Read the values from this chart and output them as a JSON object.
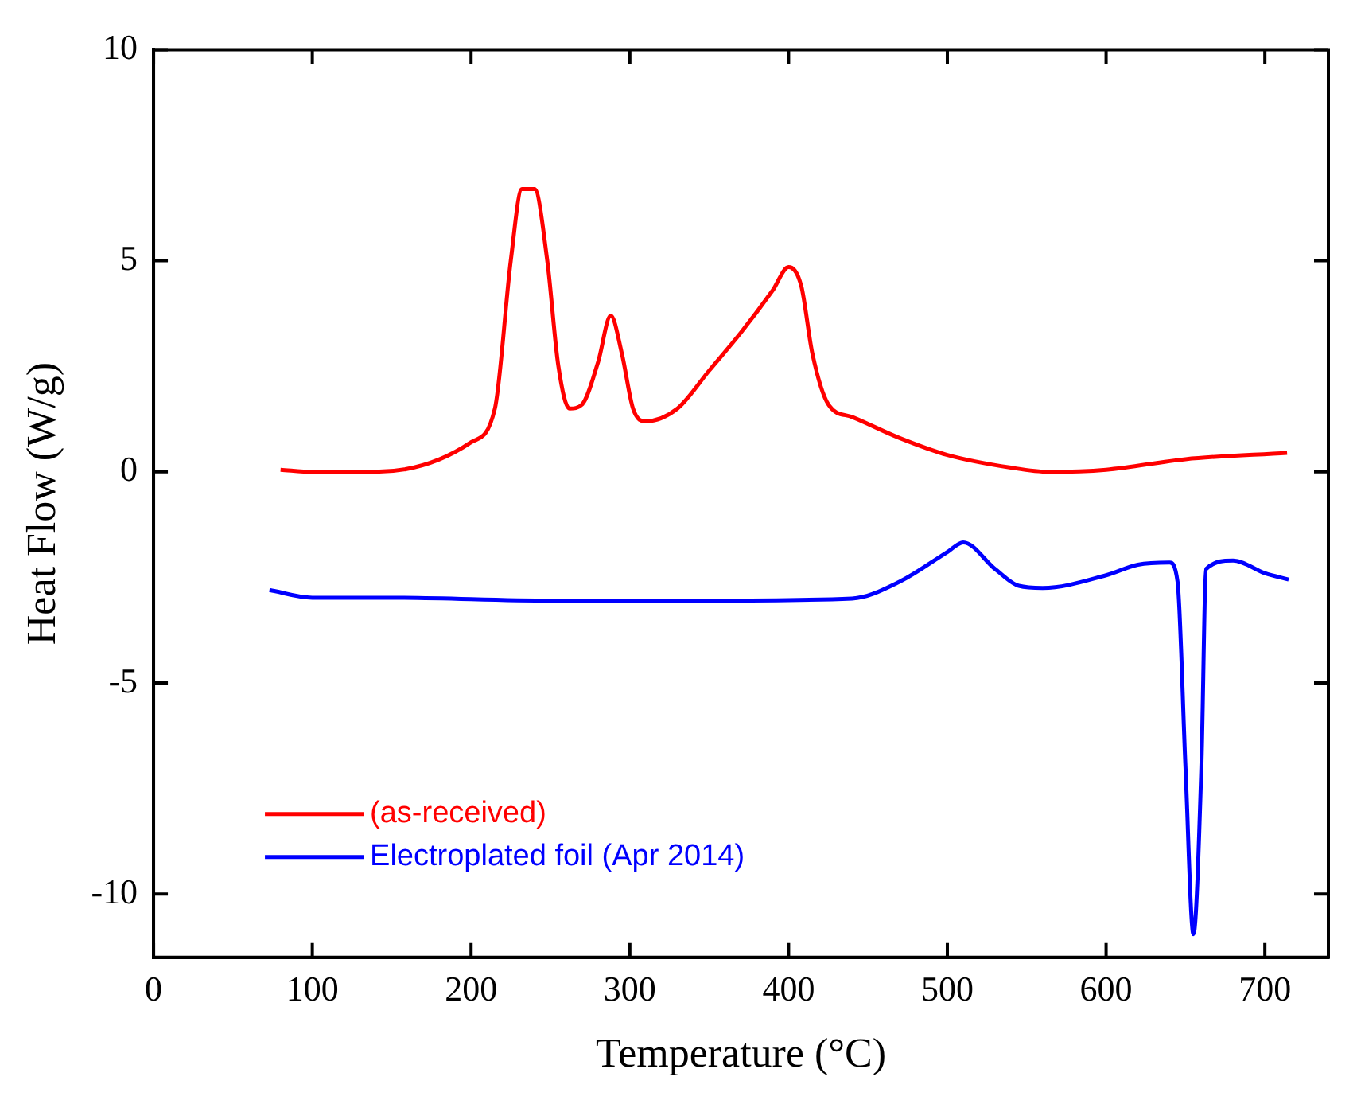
{
  "chart_data": {
    "type": "line",
    "xlabel": "Temperature (°C)",
    "ylabel": "Heat Flow (W/g)",
    "xlim": [
      0,
      740
    ],
    "xticks": [
      0,
      100,
      200,
      300,
      400,
      500,
      600,
      700
    ],
    "ylim": [
      -11.5,
      10
    ],
    "yticks": [
      -10,
      -5,
      0,
      5,
      10
    ],
    "grid": false,
    "legend": "bottom left",
    "marker": "none",
    "line_style": "solid",
    "series": [
      {
        "name": "(as-received)",
        "color": "#ff0000",
        "x": [
          80,
          100,
          140,
          200,
          215,
          225,
          232,
          240,
          248,
          255,
          262,
          270,
          280,
          288,
          295,
          302,
          310,
          330,
          350,
          370,
          390,
          400,
          408,
          415,
          425,
          440,
          470,
          500,
          540,
          564,
          600,
          650,
          714
        ],
        "values": [
          0.05,
          0,
          0,
          0.7,
          1.5,
          5,
          6.7,
          6.7,
          5,
          2.5,
          1.5,
          1.6,
          2.6,
          3.7,
          2.8,
          1.5,
          1.2,
          1.5,
          2.4,
          3.3,
          4.3,
          4.85,
          4.4,
          2.8,
          1.6,
          1.3,
          0.8,
          0.4,
          0.1,
          0,
          0.05,
          0.3,
          0.45
        ]
      },
      {
        "name": "Electroplated foil (Apr 2014)",
        "color": "#0000ff",
        "x": [
          73,
          100,
          150,
          250,
          350,
          440,
          470,
          500,
          510,
          530,
          545,
          560,
          600,
          620,
          640,
          645,
          650,
          655,
          660,
          663,
          680,
          700,
          715
        ],
        "values": [
          -2.8,
          -2.98,
          -2.98,
          -3.05,
          -3.05,
          -3.0,
          -2.6,
          -1.9,
          -1.67,
          -2.3,
          -2.7,
          -2.75,
          -2.45,
          -2.2,
          -2.15,
          -2.6,
          -7,
          -10.95,
          -7,
          -2.3,
          -2.1,
          -2.4,
          -2.55
        ]
      }
    ]
  }
}
